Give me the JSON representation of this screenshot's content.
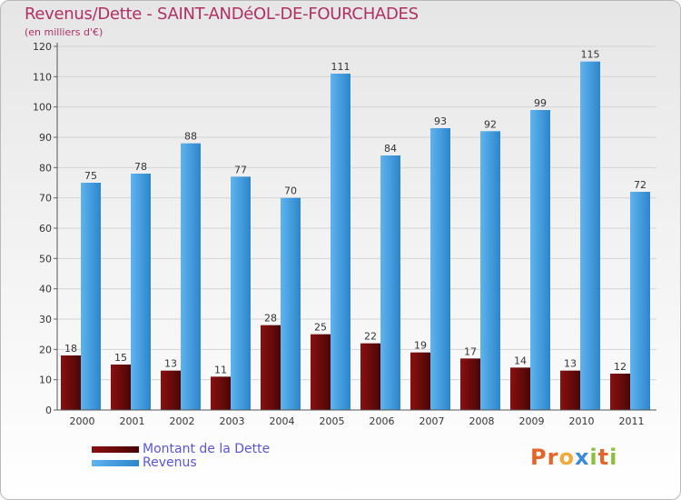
{
  "title": "Revenus/Dette - SAINT-ANDéOL-DE-FOURCHADES",
  "subtitle": "(en milliers d'€)",
  "brand": {
    "letters": [
      "P",
      "r",
      "o",
      "x",
      "i",
      "t",
      "i"
    ],
    "colors": [
      "#e2662a",
      "#e2662a",
      "#f2a93b",
      "#3c8ad8",
      "#8bbf3c",
      "#e2662a",
      "#8bbf3c"
    ]
  },
  "chart_data": {
    "type": "bar",
    "title": "Revenus/Dette - SAINT-ANDéOL-DE-FOURCHADES",
    "ylabel": "(en milliers d'€)",
    "xlabel": "",
    "categories": [
      "2000",
      "2001",
      "2002",
      "2003",
      "2004",
      "2005",
      "2006",
      "2007",
      "2008",
      "2009",
      "2010",
      "2011"
    ],
    "series": [
      {
        "name": "Montant de la Dette",
        "color": "#7a0c0c",
        "values": [
          18,
          15,
          13,
          11,
          28,
          25,
          22,
          19,
          17,
          14,
          13,
          12
        ]
      },
      {
        "name": "Revenus",
        "color": "#4aa4e4",
        "values": [
          75,
          78,
          88,
          77,
          70,
          111,
          84,
          93,
          92,
          99,
          115,
          72
        ]
      }
    ],
    "ylim": [
      0,
      120
    ],
    "yticks": [
      0,
      10,
      20,
      30,
      40,
      50,
      60,
      70,
      80,
      90,
      100,
      110,
      120
    ],
    "grid": true,
    "legend": "bottom-left"
  }
}
